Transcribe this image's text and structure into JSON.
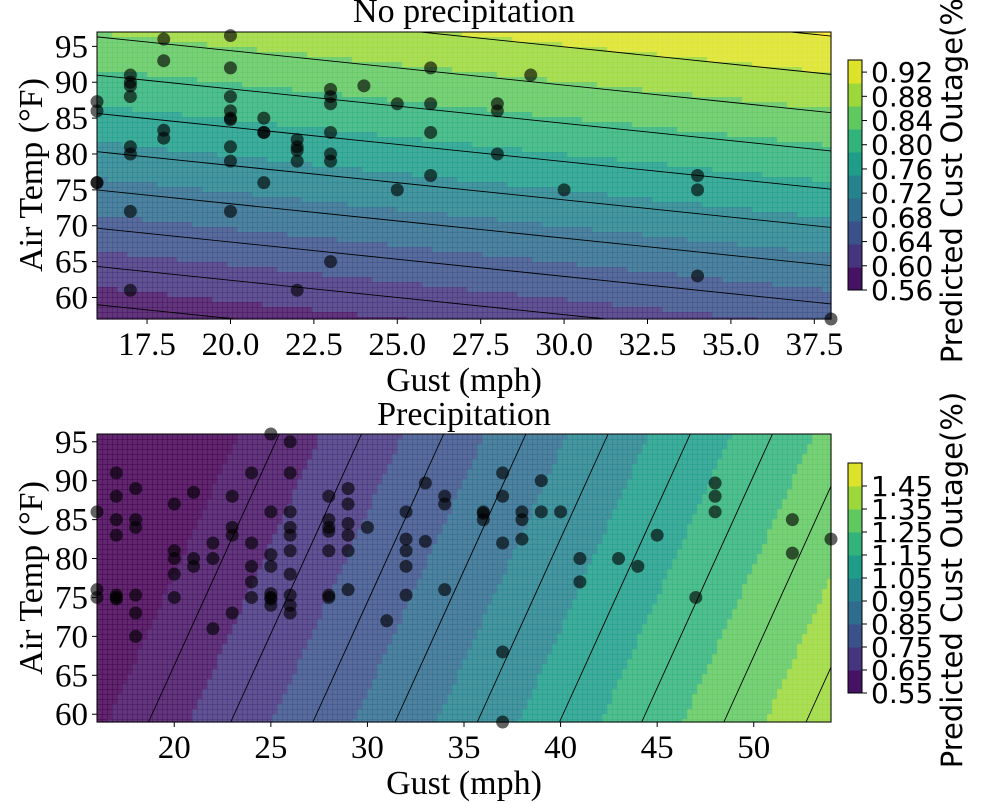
{
  "chart_data": [
    {
      "type": "contour-scatter",
      "title": "No precipitation",
      "xlabel": "Gust (mph)",
      "ylabel": "Air Temp (°F)",
      "colorbar_label": "Predicted Cust Outage(%)",
      "xlim": [
        16,
        38
      ],
      "ylim": [
        57,
        97
      ],
      "x_ticks": [
        17.5,
        20.0,
        22.5,
        25.0,
        27.5,
        30.0,
        32.5,
        35.0,
        37.5
      ],
      "x_tick_labels": [
        "17.5",
        "20.0",
        "22.5",
        "25.0",
        "27.5",
        "30.0",
        "32.5",
        "35.0",
        "37.5"
      ],
      "y_ticks": [
        60,
        65,
        70,
        75,
        80,
        85,
        90,
        95
      ],
      "y_tick_labels": [
        "60",
        "65",
        "70",
        "75",
        "80",
        "85",
        "90",
        "95"
      ],
      "colorbar_range": [
        0.56,
        0.94
      ],
      "colorbar_ticks": [
        0.56,
        0.6,
        0.64,
        0.68,
        0.72,
        0.76,
        0.8,
        0.84,
        0.88,
        0.92
      ],
      "colorbar_tick_labels": [
        "0.56",
        "0.60",
        "0.64",
        "0.68",
        "0.72",
        "0.76",
        "0.80",
        "0.84",
        "0.88",
        "0.92"
      ],
      "surface": {
        "intercept": 0.08,
        "gust_coef": 0.0036,
        "temp_coef": 0.0075
      },
      "contour_levels": [
        0.58,
        0.62,
        0.66,
        0.7,
        0.74,
        0.78,
        0.82,
        0.86,
        0.9,
        0.94
      ],
      "points": [
        [
          16,
          87.3
        ],
        [
          16,
          86
        ],
        [
          16,
          76
        ],
        [
          16,
          76
        ],
        [
          17,
          91
        ],
        [
          17,
          90
        ],
        [
          17,
          89.5
        ],
        [
          17,
          88
        ],
        [
          17,
          81
        ],
        [
          17,
          80
        ],
        [
          17,
          72
        ],
        [
          17,
          61
        ],
        [
          18,
          96
        ],
        [
          18,
          93
        ],
        [
          18,
          83.3
        ],
        [
          18,
          82.2
        ],
        [
          20,
          96.5
        ],
        [
          20,
          92
        ],
        [
          20,
          88
        ],
        [
          20,
          86
        ],
        [
          20,
          85
        ],
        [
          20,
          84.8
        ],
        [
          20,
          81
        ],
        [
          20,
          79
        ],
        [
          20,
          72
        ],
        [
          21,
          85
        ],
        [
          21,
          83
        ],
        [
          21,
          83
        ],
        [
          21,
          76
        ],
        [
          22,
          82
        ],
        [
          22,
          81
        ],
        [
          22,
          80.5
        ],
        [
          22,
          79
        ],
        [
          22,
          61
        ],
        [
          23,
          89
        ],
        [
          23,
          88
        ],
        [
          23,
          87
        ],
        [
          23,
          83
        ],
        [
          23,
          80
        ],
        [
          23,
          79
        ],
        [
          23,
          65
        ],
        [
          24,
          89.5
        ],
        [
          25,
          87
        ],
        [
          25,
          75
        ],
        [
          26,
          92
        ],
        [
          26,
          87
        ],
        [
          26,
          83
        ],
        [
          26,
          77
        ],
        [
          28,
          87
        ],
        [
          28,
          86
        ],
        [
          28,
          80
        ],
        [
          29,
          91
        ],
        [
          30,
          75
        ],
        [
          34,
          77
        ],
        [
          34,
          75
        ],
        [
          34,
          63
        ],
        [
          38,
          57
        ]
      ]
    },
    {
      "type": "contour-scatter",
      "title": "Precipitation",
      "xlabel": "Gust (mph)",
      "ylabel": "Air Temp (°F)",
      "colorbar_label": "Predicted Cust Outage(%)",
      "xlim": [
        16,
        54
      ],
      "ylim": [
        59,
        96
      ],
      "x_ticks": [
        20,
        25,
        30,
        35,
        40,
        45,
        50
      ],
      "x_tick_labels": [
        "20",
        "25",
        "30",
        "35",
        "40",
        "45",
        "50"
      ],
      "y_ticks": [
        60,
        65,
        70,
        75,
        80,
        85,
        90,
        95
      ],
      "y_tick_labels": [
        "60",
        "65",
        "70",
        "75",
        "80",
        "85",
        "90",
        "95"
      ],
      "colorbar_range": [
        0.55,
        1.55
      ],
      "colorbar_ticks": [
        0.55,
        0.65,
        0.75,
        0.85,
        0.95,
        1.05,
        1.15,
        1.25,
        1.35,
        1.45
      ],
      "colorbar_tick_labels": [
        "0.55",
        "0.65",
        "0.75",
        "0.85",
        "0.95",
        "1.05",
        "1.15",
        "1.25",
        "1.35",
        "1.45"
      ],
      "surface": {
        "intercept": 0.415,
        "gust_coef": 0.0235,
        "temp_coef": -0.0043
      },
      "contour_levels": [
        0.6,
        0.7,
        0.8,
        0.9,
        1.0,
        1.1,
        1.2,
        1.3,
        1.4,
        1.5
      ],
      "points": [
        [
          16,
          86
        ],
        [
          16,
          76
        ],
        [
          16,
          75
        ],
        [
          17,
          91
        ],
        [
          17,
          88
        ],
        [
          17,
          85
        ],
        [
          17,
          83
        ],
        [
          17,
          75.3
        ],
        [
          17,
          75
        ],
        [
          17,
          74.8
        ],
        [
          18,
          89
        ],
        [
          18,
          85
        ],
        [
          18,
          84
        ],
        [
          18,
          75.3
        ],
        [
          18,
          73
        ],
        [
          18,
          70
        ],
        [
          20,
          87
        ],
        [
          20,
          81
        ],
        [
          20,
          80
        ],
        [
          20,
          78
        ],
        [
          20,
          75
        ],
        [
          21,
          88.5
        ],
        [
          21,
          80
        ],
        [
          21,
          79
        ],
        [
          22,
          82
        ],
        [
          22,
          80
        ],
        [
          22,
          71
        ],
        [
          23,
          88
        ],
        [
          23,
          84
        ],
        [
          23,
          83
        ],
        [
          23,
          73
        ],
        [
          24,
          91
        ],
        [
          24,
          82
        ],
        [
          24,
          79
        ],
        [
          24,
          77
        ],
        [
          24,
          75
        ],
        [
          25,
          96
        ],
        [
          25,
          86
        ],
        [
          25,
          80.5
        ],
        [
          25,
          79
        ],
        [
          25,
          75.5
        ],
        [
          25,
          75
        ],
        [
          25,
          74.8
        ],
        [
          25,
          74
        ],
        [
          26,
          95
        ],
        [
          26,
          91
        ],
        [
          26,
          86
        ],
        [
          26,
          84
        ],
        [
          26,
          83
        ],
        [
          26,
          81
        ],
        [
          26,
          78
        ],
        [
          26,
          75.3
        ],
        [
          26,
          74
        ],
        [
          26,
          73
        ],
        [
          28,
          88
        ],
        [
          28,
          85
        ],
        [
          28,
          84
        ],
        [
          28,
          83.5
        ],
        [
          28,
          81
        ],
        [
          28,
          75.3
        ],
        [
          28,
          75
        ],
        [
          29,
          89
        ],
        [
          29,
          87
        ],
        [
          29,
          84.5
        ],
        [
          29,
          83
        ],
        [
          29,
          81
        ],
        [
          29,
          76
        ],
        [
          30,
          84
        ],
        [
          31,
          72
        ],
        [
          32,
          86
        ],
        [
          32,
          82.5
        ],
        [
          32,
          81
        ],
        [
          32,
          79
        ],
        [
          32,
          75.3
        ],
        [
          33,
          89.7
        ],
        [
          33,
          82.2
        ],
        [
          34,
          88
        ],
        [
          34,
          87
        ],
        [
          34,
          76
        ],
        [
          36,
          86
        ],
        [
          36,
          85.8
        ],
        [
          36,
          85
        ],
        [
          37,
          91
        ],
        [
          37,
          88
        ],
        [
          37,
          82
        ],
        [
          37,
          68
        ],
        [
          37,
          59
        ],
        [
          38,
          86
        ],
        [
          38,
          85
        ],
        [
          38,
          82.5
        ],
        [
          39,
          90
        ],
        [
          39,
          86
        ],
        [
          40,
          86
        ],
        [
          41,
          80
        ],
        [
          41,
          77
        ],
        [
          43,
          80
        ],
        [
          44,
          79
        ],
        [
          45,
          83
        ],
        [
          47,
          75
        ],
        [
          48,
          89.7
        ],
        [
          48,
          88
        ],
        [
          48,
          86
        ],
        [
          52,
          85
        ],
        [
          52,
          80.7
        ],
        [
          54,
          82.5
        ]
      ]
    }
  ]
}
